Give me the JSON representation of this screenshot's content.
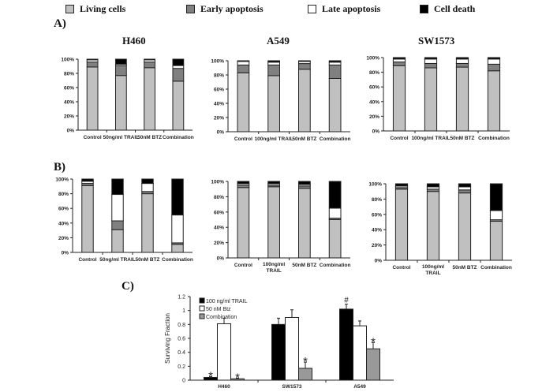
{
  "legend": {
    "items": [
      {
        "label": "Living cells",
        "color": "#c0c0c0"
      },
      {
        "label": "Early apoptosis",
        "color": "#808080"
      },
      {
        "label": "Late apoptosis",
        "color": "#ffffff"
      },
      {
        "label": "Cell death",
        "color": "#000000"
      }
    ]
  },
  "panels": {
    "a_label": "A)",
    "b_label": "B)",
    "c_label": "C)"
  },
  "cell_lines": [
    "H460",
    "A549",
    "SW1573"
  ],
  "chart_data": [
    {
      "id": "A-H460",
      "type": "bar",
      "stacked": true,
      "panel": "A",
      "cell_line": "H460",
      "categories": [
        "Control",
        "50ng/ml TRAIL",
        "50nM BTZ",
        "Combination"
      ],
      "yticks": [
        "0%",
        "20%",
        "40%",
        "60%",
        "80%",
        "100%"
      ],
      "ylim": [
        0,
        100
      ],
      "series": [
        {
          "name": "Living cells",
          "values": [
            89,
            77,
            88,
            69
          ]
        },
        {
          "name": "Early apoptosis",
          "values": [
            7,
            14,
            8,
            18
          ]
        },
        {
          "name": "Late apoptosis",
          "values": [
            3,
            2,
            3,
            4
          ]
        },
        {
          "name": "Cell death",
          "values": [
            1,
            7,
            1,
            9
          ]
        }
      ]
    },
    {
      "id": "A-A549",
      "type": "bar",
      "stacked": true,
      "panel": "A",
      "cell_line": "A549",
      "categories": [
        "Control",
        "100ng/ml TRAIL",
        "50nM BTZ",
        "Combination"
      ],
      "yticks": [
        "0%",
        "20%",
        "40%",
        "60%",
        "80%",
        "100%"
      ],
      "ylim": [
        0,
        100
      ],
      "series": [
        {
          "name": "Living cells",
          "values": [
            83,
            79,
            88,
            75
          ]
        },
        {
          "name": "Early apoptosis",
          "values": [
            11,
            15,
            8,
            19
          ]
        },
        {
          "name": "Late apoptosis",
          "values": [
            5,
            4,
            3,
            4
          ]
        },
        {
          "name": "Cell death",
          "values": [
            1,
            2,
            1,
            2
          ]
        }
      ]
    },
    {
      "id": "A-SW1573",
      "type": "bar",
      "stacked": true,
      "panel": "A",
      "cell_line": "SW1573",
      "categories": [
        "Control",
        "100ng/ml TRAIL",
        "50nM BTZ",
        "Combination"
      ],
      "yticks": [
        "0%",
        "20%",
        "40%",
        "60%",
        "80%",
        "100%"
      ],
      "ylim": [
        0,
        100
      ],
      "series": [
        {
          "name": "Living cells",
          "values": [
            89,
            86,
            87,
            82
          ]
        },
        {
          "name": "Early apoptosis",
          "values": [
            5,
            6,
            5,
            9
          ]
        },
        {
          "name": "Late apoptosis",
          "values": [
            4,
            6,
            6,
            7
          ]
        },
        {
          "name": "Cell death",
          "values": [
            2,
            2,
            2,
            2
          ]
        }
      ]
    },
    {
      "id": "B-H460",
      "type": "bar",
      "stacked": true,
      "panel": "B",
      "cell_line": "H460",
      "categories": [
        "Control",
        "50ng/ml TRAIL",
        "50nM BTZ",
        "Combination"
      ],
      "yticks": [
        "0%",
        "20%",
        "40%",
        "60%",
        "80%",
        "100%"
      ],
      "ylim": [
        0,
        100
      ],
      "series": [
        {
          "name": "Living cells",
          "values": [
            91,
            31,
            80,
            11
          ]
        },
        {
          "name": "Early apoptosis",
          "values": [
            3,
            12,
            3,
            2
          ]
        },
        {
          "name": "Late apoptosis",
          "values": [
            3,
            36,
            11,
            38
          ]
        },
        {
          "name": "Cell death",
          "values": [
            3,
            21,
            6,
            49
          ]
        }
      ]
    },
    {
      "id": "B-A549",
      "type": "bar",
      "stacked": true,
      "panel": "B",
      "cell_line": "A549",
      "categories": [
        "Control",
        "100ng/ml TRAIL",
        "50nM BTZ",
        "Combination"
      ],
      "yticks": [
        "0%",
        "20%",
        "40%",
        "60%",
        "80%",
        "100%"
      ],
      "ylim": [
        0,
        100
      ],
      "series": [
        {
          "name": "Living cells",
          "values": [
            92,
            93,
            91,
            50
          ]
        },
        {
          "name": "Early apoptosis",
          "values": [
            3,
            2,
            3,
            2
          ]
        },
        {
          "name": "Late apoptosis",
          "values": [
            2,
            2,
            2,
            13
          ]
        },
        {
          "name": "Cell death",
          "values": [
            3,
            3,
            4,
            35
          ]
        }
      ]
    },
    {
      "id": "B-SW1573",
      "type": "bar",
      "stacked": true,
      "panel": "B",
      "cell_line": "SW1573",
      "categories": [
        "Control",
        "100ng/ml TRAIL",
        "50nM BTZ",
        "Combination"
      ],
      "yticks": [
        "0%",
        "20%",
        "40%",
        "60%",
        "80%",
        "100%"
      ],
      "ylim": [
        0,
        100
      ],
      "series": [
        {
          "name": "Living cells",
          "values": [
            93,
            90,
            88,
            51
          ]
        },
        {
          "name": "Early apoptosis",
          "values": [
            2,
            3,
            4,
            2
          ]
        },
        {
          "name": "Late apoptosis",
          "values": [
            2,
            3,
            4,
            12
          ]
        },
        {
          "name": "Cell death",
          "values": [
            3,
            4,
            4,
            35
          ]
        }
      ]
    },
    {
      "id": "C",
      "type": "bar",
      "stacked": false,
      "panel": "C",
      "categories": [
        "H460",
        "SW1573",
        "A549"
      ],
      "ylabel": "Surviving Fraction",
      "yticks": [
        "0",
        "0.2",
        "0.4",
        "0.6",
        "0.8",
        "1",
        "1.2"
      ],
      "ylim": [
        0,
        1.2
      ],
      "legend_position": "top-left",
      "series": [
        {
          "name": "100 ng/ml TRAIL",
          "color": "#000000",
          "values": [
            0.04,
            0.8,
            1.02
          ],
          "errors": [
            0.01,
            0.09,
            0.07
          ],
          "marks": [
            "*",
            "",
            "#"
          ]
        },
        {
          "name": "50 nM Btz",
          "color": "#ffffff",
          "values": [
            0.81,
            0.9,
            0.78
          ],
          "errors": [
            0.08,
            0.11,
            0.07
          ],
          "marks": [
            "",
            "",
            ""
          ]
        },
        {
          "name": "Combination",
          "color": "#999999",
          "values": [
            0.02,
            0.17,
            0.45
          ],
          "errors": [
            0.01,
            0.09,
            0.09
          ],
          "marks": [
            "*",
            "*",
            "*"
          ]
        }
      ]
    }
  ]
}
